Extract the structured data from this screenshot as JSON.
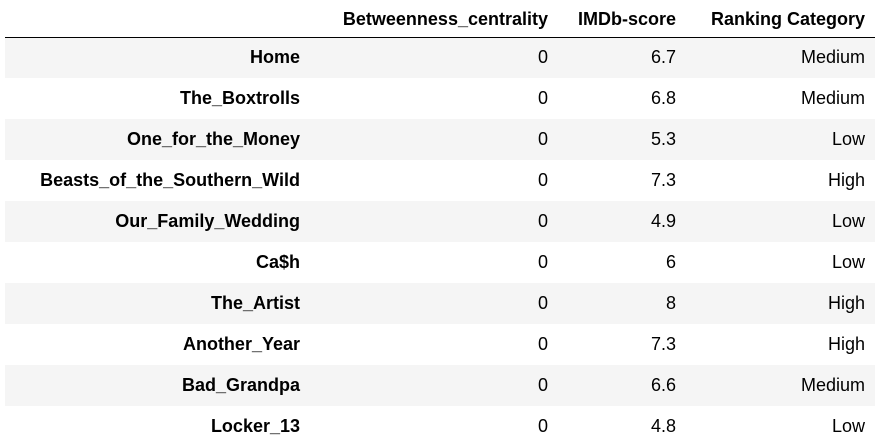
{
  "table": {
    "columns": [
      "",
      "Betweenness_centrality",
      "IMDb-score",
      "Ranking Category"
    ],
    "rows": [
      {
        "index": "Home",
        "betweenness": "0",
        "imdb": "6.7",
        "category": "Medium"
      },
      {
        "index": "The_Boxtrolls",
        "betweenness": "0",
        "imdb": "6.8",
        "category": "Medium"
      },
      {
        "index": "One_for_the_Money",
        "betweenness": "0",
        "imdb": "5.3",
        "category": "Low"
      },
      {
        "index": "Beasts_of_the_Southern_Wild",
        "betweenness": "0",
        "imdb": "7.3",
        "category": "High"
      },
      {
        "index": "Our_Family_Wedding",
        "betweenness": "0",
        "imdb": "4.9",
        "category": "Low"
      },
      {
        "index": "Ca$h",
        "betweenness": "0",
        "imdb": "6",
        "category": "Low"
      },
      {
        "index": "The_Artist",
        "betweenness": "0",
        "imdb": "8",
        "category": "High"
      },
      {
        "index": "Another_Year",
        "betweenness": "0",
        "imdb": "7.3",
        "category": "High"
      },
      {
        "index": "Bad_Grandpa",
        "betweenness": "0",
        "imdb": "6.6",
        "category": "Medium"
      },
      {
        "index": "Locker_13",
        "betweenness": "0",
        "imdb": "4.8",
        "category": "Low"
      }
    ]
  },
  "colors": {
    "stripe": "#f5f5f5",
    "background": "#ffffff",
    "text": "#000000"
  }
}
